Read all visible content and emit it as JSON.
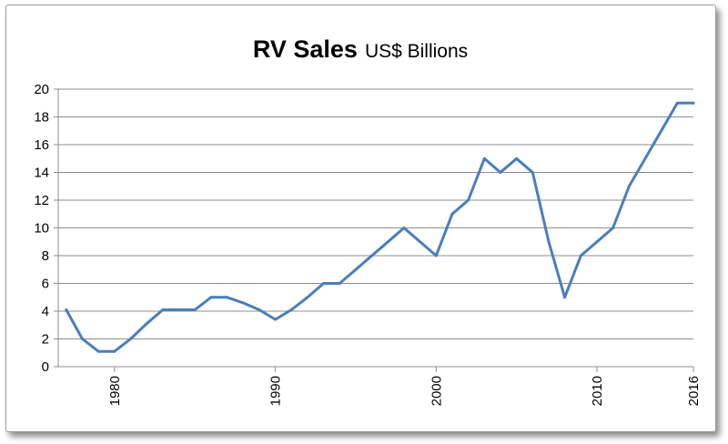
{
  "chart_data": {
    "type": "line",
    "title": "RV Sales",
    "subtitle": "US$ Billions",
    "xlabel": "",
    "ylabel": "",
    "ylim": [
      0,
      20
    ],
    "y_ticks": [
      0,
      2,
      4,
      6,
      8,
      10,
      12,
      14,
      16,
      18,
      20
    ],
    "x_tick_labels": [
      "1980",
      "1990",
      "2000",
      "2010",
      "2016"
    ],
    "grid": "horizontal",
    "legend": "none",
    "line_color": "#4a7ebb",
    "x": [
      1977,
      1978,
      1979,
      1980,
      1981,
      1982,
      1983,
      1984,
      1985,
      1986,
      1987,
      1988,
      1989,
      1990,
      1991,
      1992,
      1993,
      1994,
      1995,
      1996,
      1997,
      1998,
      1999,
      2000,
      2001,
      2002,
      2003,
      2004,
      2005,
      2006,
      2007,
      2008,
      2009,
      2010,
      2011,
      2012,
      2013,
      2014,
      2015,
      2016
    ],
    "values": [
      4.1,
      2.0,
      1.1,
      1.1,
      2.0,
      3.1,
      4.1,
      4.1,
      4.1,
      5.0,
      5.0,
      4.6,
      4.1,
      3.4,
      4.1,
      5.0,
      6.0,
      6.0,
      7.0,
      8.0,
      9.0,
      10.0,
      9.0,
      8.0,
      11.0,
      12.0,
      15.0,
      14.0,
      15.0,
      14.0,
      9.0,
      5.0,
      8.0,
      9.0,
      10.0,
      13.0,
      15.0,
      17.0,
      19.0,
      19.0
    ]
  }
}
